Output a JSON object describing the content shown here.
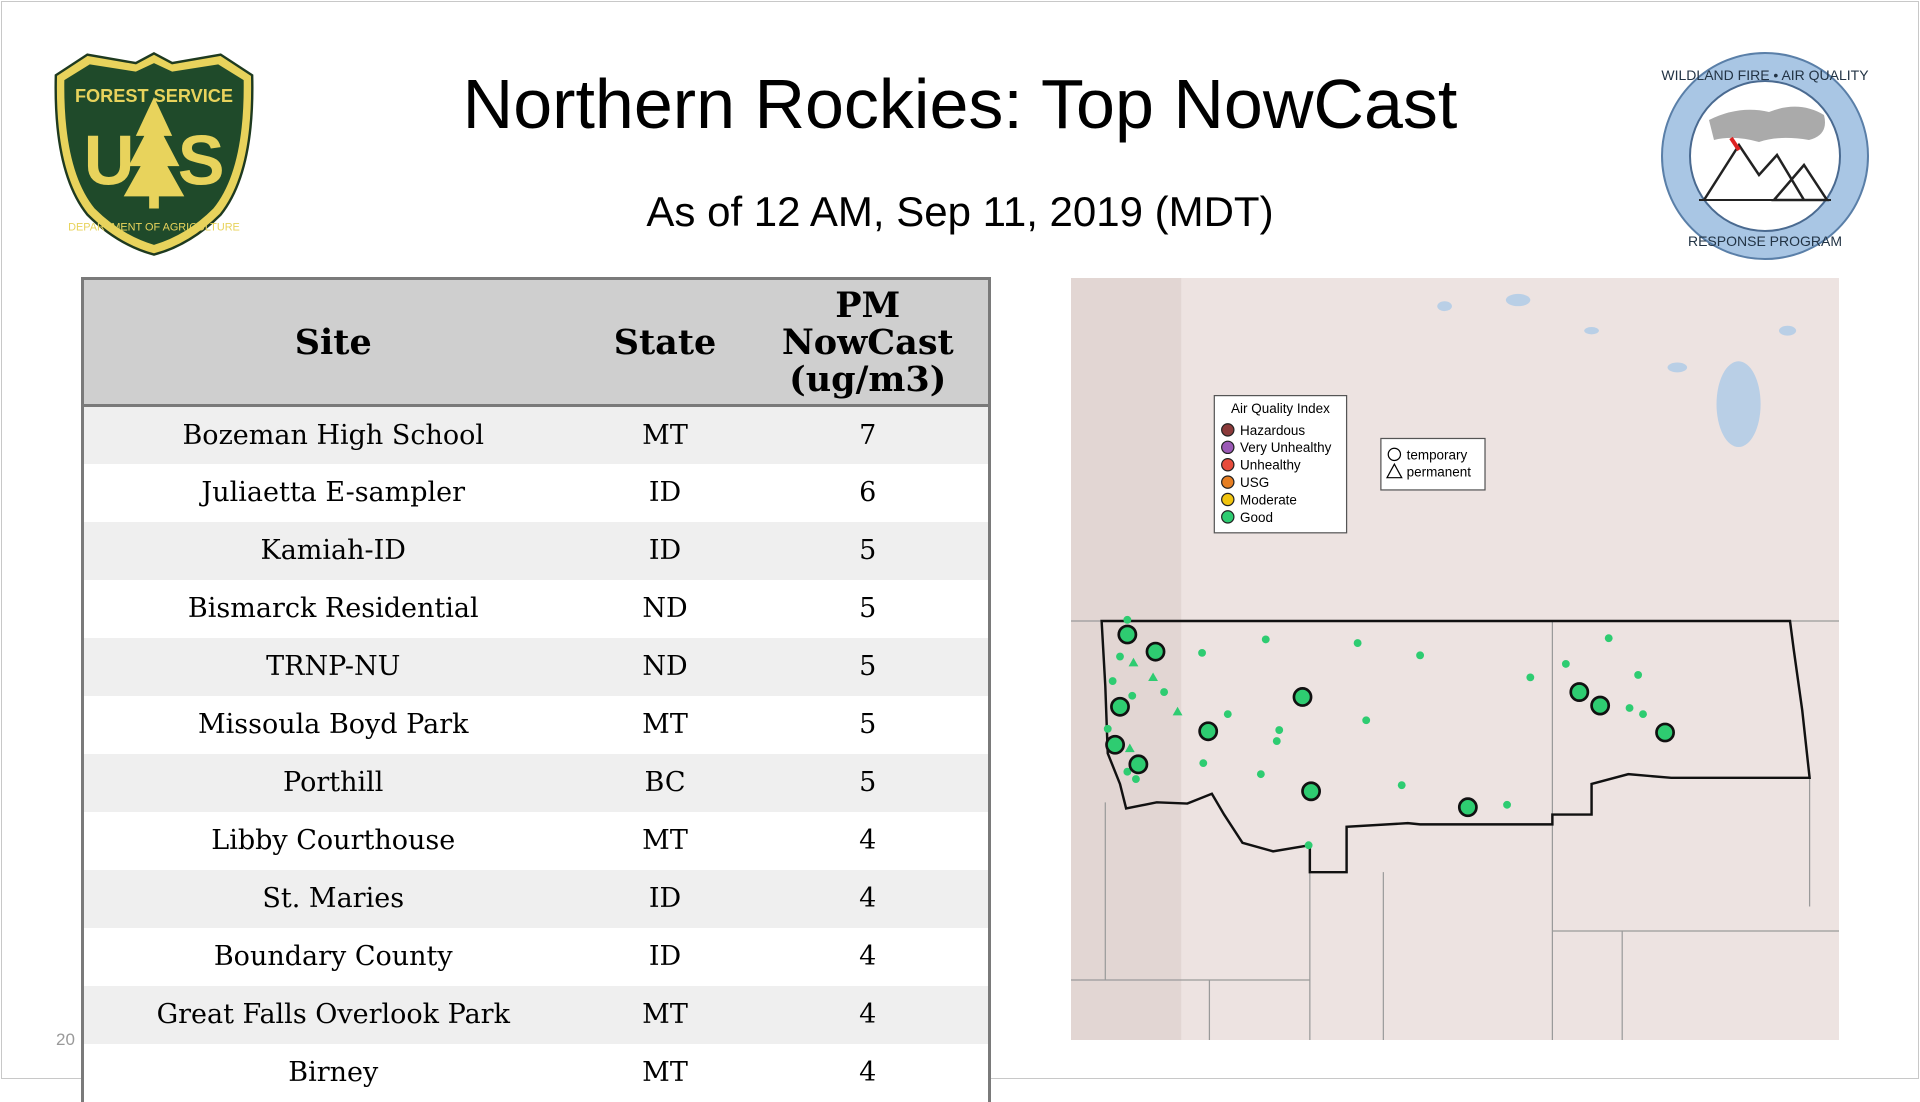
{
  "title": "Northern Rockies: Top NowCast",
  "subtitle": "As of 12 AM, Sep 11, 2019 (MDT)",
  "page_number": "20",
  "logos": {
    "left": "FOREST SERVICE U S DEPARTMENT OF AGRICULTURE",
    "right": "WILDLAND FIRE • AIR QUALITY RESPONSE PROGRAM"
  },
  "table": {
    "headers": [
      "Site",
      "State",
      "PM NowCast (ug/m3)"
    ],
    "rows": [
      [
        "Bozeman High School",
        "MT",
        "7"
      ],
      [
        "Juliaetta E-sampler",
        "ID",
        "6"
      ],
      [
        "Kamiah-ID",
        "ID",
        "5"
      ],
      [
        "Bismarck Residential",
        "ND",
        "5"
      ],
      [
        "TRNP-NU",
        "ND",
        "5"
      ],
      [
        "Missoula Boyd Park",
        "MT",
        "5"
      ],
      [
        "Porthill",
        "BC",
        "5"
      ],
      [
        "Libby Courthouse",
        "MT",
        "4"
      ],
      [
        "St. Maries",
        "ID",
        "4"
      ],
      [
        "Boundary County",
        "ID",
        "4"
      ],
      [
        "Great Falls Overlook Park",
        "MT",
        "4"
      ],
      [
        "Birney",
        "MT",
        "4"
      ]
    ]
  },
  "map": {
    "aqi_legend": {
      "title": "Air Quality Index",
      "items": [
        {
          "label": "Hazardous",
          "color": "#8b3a3a"
        },
        {
          "label": "Very Unhealthy",
          "color": "#9b59b6"
        },
        {
          "label": "Unhealthy",
          "color": "#e74c3c"
        },
        {
          "label": "USG",
          "color": "#e67e22"
        },
        {
          "label": "Moderate",
          "color": "#f1c40f"
        },
        {
          "label": "Good",
          "color": "#2ecc71"
        }
      ]
    },
    "type_legend": [
      {
        "label": "temporary",
        "icon": "circle"
      },
      {
        "label": "permanent",
        "icon": "triangle"
      }
    ]
  }
}
